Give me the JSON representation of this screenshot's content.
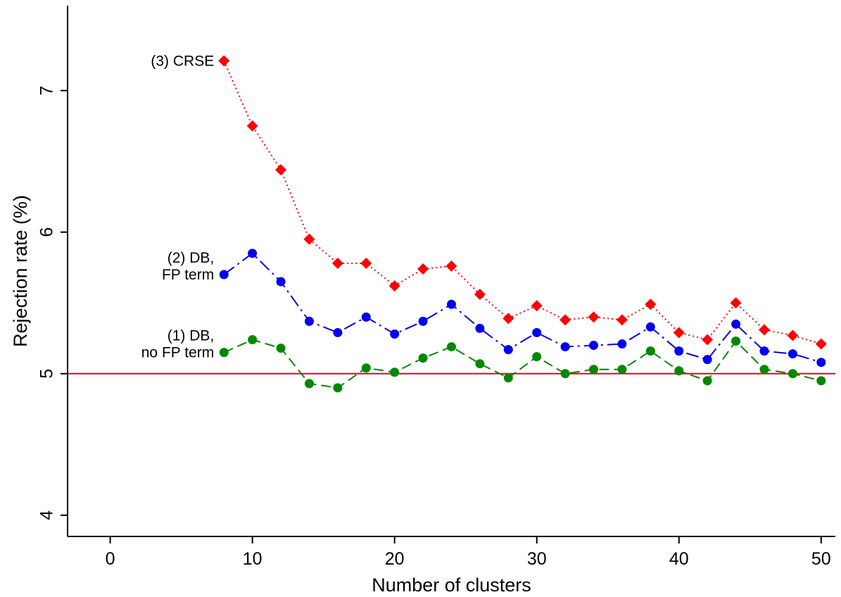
{
  "chart_data": {
    "type": "line",
    "title": "",
    "xlabel": "Number of clusters",
    "ylabel": "Rejection rate (%)",
    "xlim": [
      -3,
      51
    ],
    "ylim": [
      3.85,
      7.6
    ],
    "xticks": [
      0,
      10,
      20,
      30,
      40,
      50
    ],
    "xtick_labels": [
      "0",
      "10",
      "20",
      "30",
      "40",
      "50"
    ],
    "yticks": [
      4,
      5,
      6,
      7
    ],
    "ytick_labels": [
      "4",
      "5",
      "6",
      "7"
    ],
    "grid": false,
    "legend": "none (series labeled directly at line start)",
    "reference_line": {
      "y": 5,
      "color": "#c8102e"
    },
    "x": [
      8,
      10,
      12,
      14,
      16,
      18,
      20,
      22,
      24,
      26,
      28,
      30,
      32,
      34,
      36,
      38,
      40,
      42,
      44,
      46,
      48,
      50
    ],
    "series": [
      {
        "name": "(3) CRSE",
        "label_lines": [
          "(3) CRSE"
        ],
        "color": "#ff0000",
        "marker": "diamond",
        "dash": "dotted",
        "values": [
          7.21,
          6.75,
          6.44,
          5.95,
          5.78,
          5.78,
          5.62,
          5.74,
          5.76,
          5.56,
          5.39,
          5.48,
          5.38,
          5.4,
          5.38,
          5.49,
          5.29,
          5.24,
          5.5,
          5.31,
          5.27,
          5.21
        ]
      },
      {
        "name": "(2) DB, FP term",
        "label_lines": [
          "(2) DB,",
          "FP term"
        ],
        "color": "#0000ee",
        "marker": "circle",
        "dash": "dashdot",
        "values": [
          5.7,
          5.85,
          5.65,
          5.37,
          5.29,
          5.4,
          5.28,
          5.37,
          5.49,
          5.32,
          5.17,
          5.29,
          5.19,
          5.2,
          5.21,
          5.33,
          5.16,
          5.1,
          5.35,
          5.16,
          5.14,
          5.08
        ]
      },
      {
        "name": "(1) DB, no FP term",
        "label_lines": [
          "(1) DB,",
          "no FP term"
        ],
        "color": "#008800",
        "marker": "circle",
        "dash": "dashed",
        "values": [
          5.15,
          5.24,
          5.18,
          4.93,
          4.9,
          5.04,
          5.01,
          5.11,
          5.19,
          5.07,
          4.97,
          5.12,
          5.0,
          5.03,
          5.03,
          5.16,
          5.02,
          4.95,
          5.23,
          5.03,
          5.0,
          4.95
        ]
      }
    ]
  }
}
